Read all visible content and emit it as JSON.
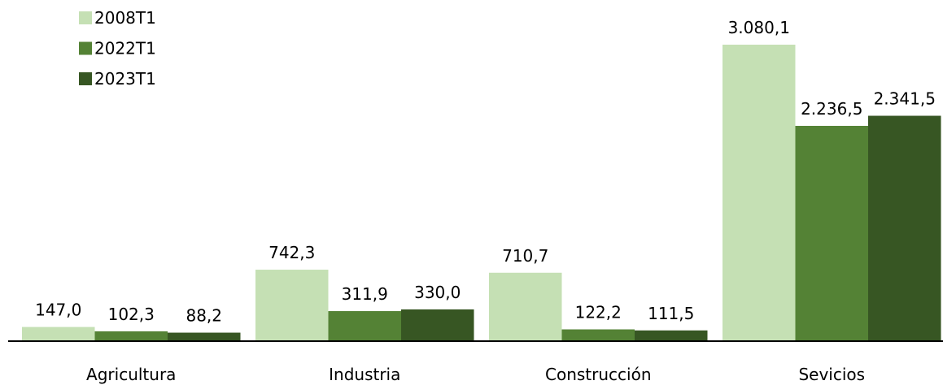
{
  "chart_data": {
    "type": "bar",
    "categories": [
      "Agricultura",
      "Industria",
      "Construcción",
      "Sevicios"
    ],
    "series": [
      {
        "name": "2008T1",
        "color": "#c5e0b4",
        "values": [
          147.0,
          742.3,
          710.7,
          3080.1
        ],
        "value_labels": [
          "147,0",
          "742,3",
          "710,7",
          "3.080,1"
        ]
      },
      {
        "name": "2022T1",
        "color": "#548235",
        "values": [
          102.3,
          311.9,
          122.2,
          2236.5
        ],
        "value_labels": [
          "102,3",
          "311,9",
          "122,2",
          "2.236,5"
        ]
      },
      {
        "name": "2023T1",
        "color": "#375623",
        "values": [
          88.2,
          330.0,
          111.5,
          2341.5
        ],
        "value_labels": [
          "88,2",
          "330,0",
          "111,5",
          "2.341,5"
        ]
      }
    ],
    "legend": "upper left"
  }
}
